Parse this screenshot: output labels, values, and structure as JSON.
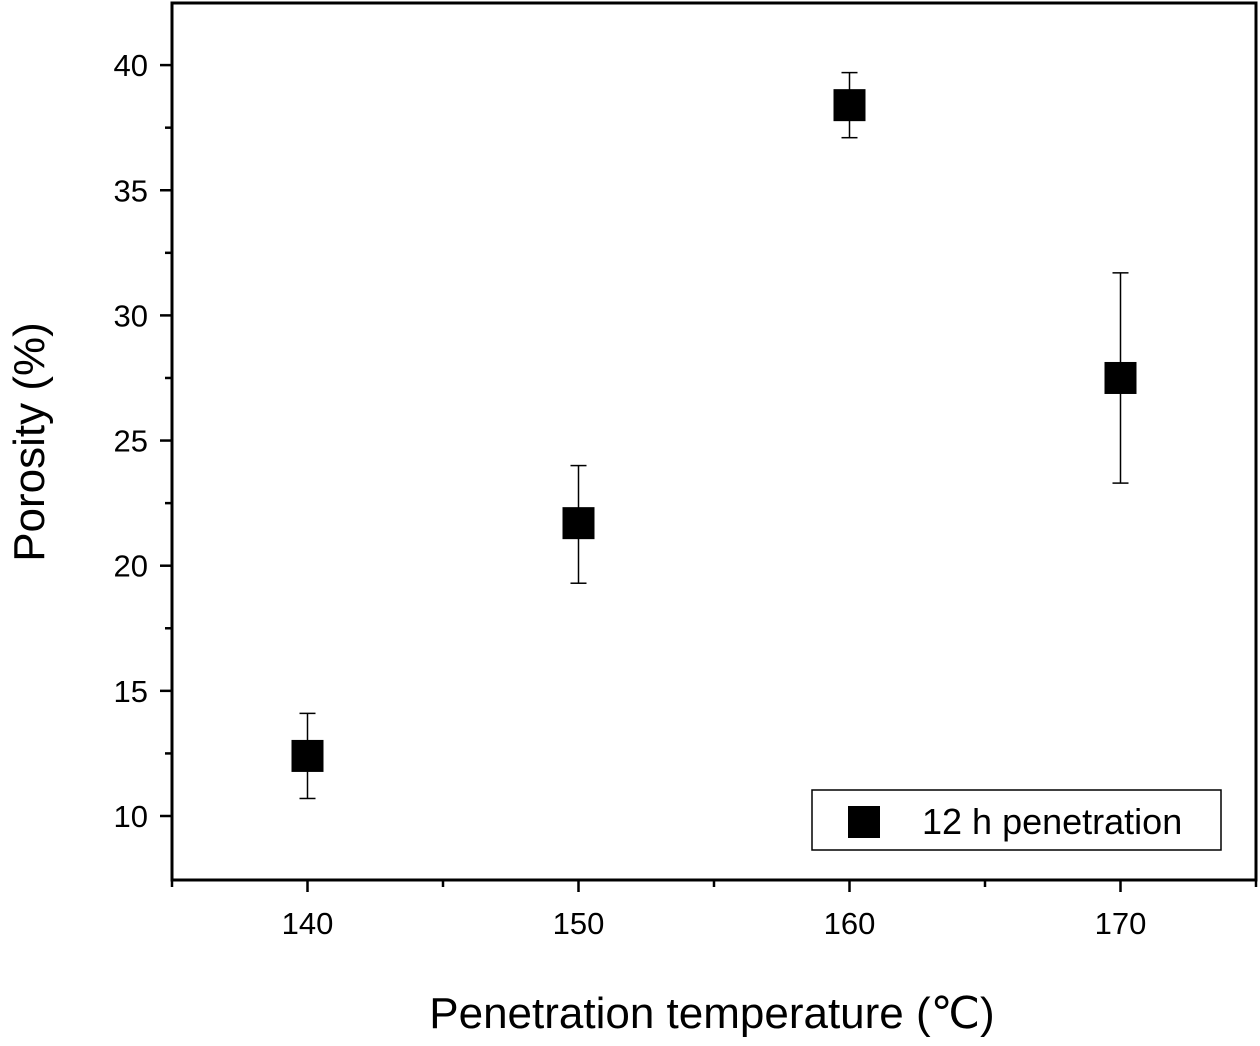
{
  "chart_data": {
    "type": "scatter",
    "xlabel": "Penetration temperature (℃)",
    "ylabel": "Porosity (%)",
    "xlim": [
      135,
      175
    ],
    "ylim": [
      7.5,
      42.5
    ],
    "x_ticks": [
      140,
      150,
      160,
      170
    ],
    "y_ticks": [
      10,
      15,
      20,
      25,
      30,
      35,
      40
    ],
    "x_tick_labels": [
      "140",
      "150",
      "160",
      "170"
    ],
    "y_tick_labels": [
      "10",
      "15",
      "20",
      "25",
      "30",
      "35",
      "40"
    ],
    "grid": false,
    "legend_position": "bottom-right",
    "series": [
      {
        "name": "12 h penetration",
        "marker": "square",
        "color": "#000000",
        "points": [
          {
            "x": 140,
            "y": 12.4,
            "err_low": 10.7,
            "err_high": 14.1
          },
          {
            "x": 150,
            "y": 21.7,
            "err_low": 19.3,
            "err_high": 24.0
          },
          {
            "x": 160,
            "y": 38.4,
            "err_low": 37.1,
            "err_high": 39.7
          },
          {
            "x": 170,
            "y": 27.5,
            "err_low": 23.3,
            "err_high": 31.7
          }
        ]
      }
    ]
  }
}
